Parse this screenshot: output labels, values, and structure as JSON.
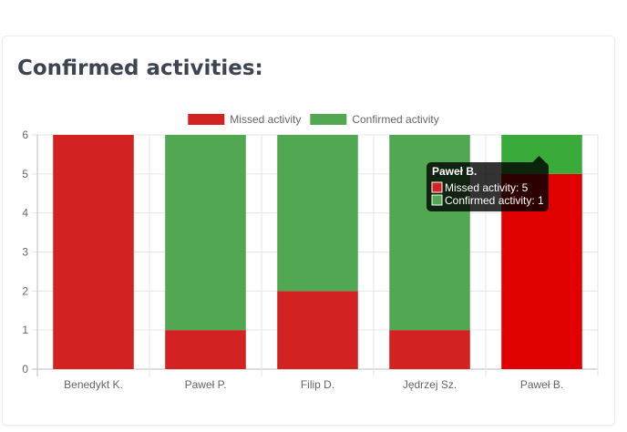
{
  "header": {
    "title": "Confirmed activities:"
  },
  "chart_data": {
    "type": "bar",
    "stacked": true,
    "categories": [
      "Benedykt K.",
      "Paweł P.",
      "Filip D.",
      "Jędrzej Sz.",
      "Paweł B."
    ],
    "series": [
      {
        "name": "Missed activity",
        "color": "#d32222",
        "hover_color": "#e00000",
        "values": [
          6,
          1,
          2,
          1,
          5
        ]
      },
      {
        "name": "Confirmed activity",
        "color": "#52a852",
        "hover_color": "#3aab3a",
        "values": [
          0,
          5,
          4,
          5,
          1
        ]
      }
    ],
    "ylim": [
      0,
      6
    ],
    "yticks": [
      0,
      1,
      2,
      3,
      4,
      5,
      6
    ],
    "grid": true,
    "legend": "top",
    "tooltip": {
      "category": "Paweł B.",
      "lines": [
        "Missed activity: 5",
        "Confirmed activity: 1"
      ]
    }
  }
}
